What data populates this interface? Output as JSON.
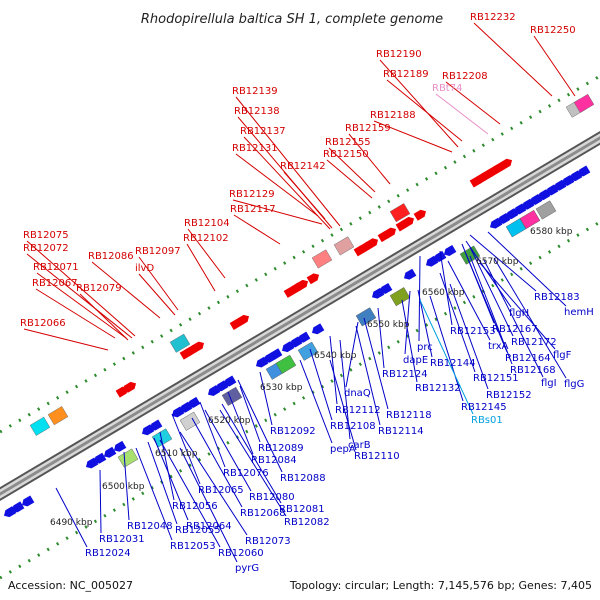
{
  "title": "Rhodopirellula baltica SH 1, complete genome",
  "footer": {
    "accession": "Accession: NC_005027",
    "summary": "Topology: circular; Length: 7,145,576 bp; Genes: 7,405"
  },
  "kbp_ticks": [
    "6490 kbp",
    "6500 kbp",
    "6510 kbp",
    "6520 kbp",
    "6530 kbp",
    "6540 kbp",
    "6550 kbp",
    "6560 kbp",
    "6570 kbp",
    "6580 kbp"
  ],
  "top_labels": [
    {
      "text": "RB12232",
      "color": "#d40000"
    },
    {
      "text": "RB12250",
      "color": "#d40000"
    },
    {
      "text": "RB12190",
      "color": "#d40000"
    },
    {
      "text": "RB12189",
      "color": "#d40000"
    },
    {
      "text": "RB12208",
      "color": "#d40000"
    },
    {
      "text": "RBt74",
      "color": "#e890c8"
    },
    {
      "text": "RB12188",
      "color": "#d40000"
    },
    {
      "text": "RB12139",
      "color": "#d40000"
    },
    {
      "text": "RB12138",
      "color": "#d40000"
    },
    {
      "text": "RB12137",
      "color": "#d40000"
    },
    {
      "text": "RB12159",
      "color": "#d40000"
    },
    {
      "text": "RB12155",
      "color": "#d40000"
    },
    {
      "text": "RB12131",
      "color": "#d40000"
    },
    {
      "text": "RB12150",
      "color": "#d40000"
    },
    {
      "text": "RB12142",
      "color": "#d40000"
    },
    {
      "text": "RB12129",
      "color": "#d40000"
    },
    {
      "text": "RB12117",
      "color": "#d40000"
    },
    {
      "text": "RB12104",
      "color": "#d40000"
    },
    {
      "text": "RB12102",
      "color": "#d40000"
    },
    {
      "text": "RB12075",
      "color": "#d40000"
    },
    {
      "text": "RB12097",
      "color": "#d40000"
    },
    {
      "text": "RB12072",
      "color": "#d40000"
    },
    {
      "text": "RB12086",
      "color": "#d40000"
    },
    {
      "text": "ilvD",
      "color": "#d40000"
    },
    {
      "text": "RB12071",
      "color": "#d40000"
    },
    {
      "text": "RB12067",
      "color": "#d40000"
    },
    {
      "text": "RB12079",
      "color": "#d40000"
    },
    {
      "text": "RB12066",
      "color": "#d40000"
    }
  ],
  "bottom_labels": [
    {
      "text": "RB12183",
      "color": "#0000c8"
    },
    {
      "text": "hemH",
      "color": "#0000c8"
    },
    {
      "text": "flgH",
      "color": "#0000c8"
    },
    {
      "text": "RB12167",
      "color": "#0000c8"
    },
    {
      "text": "RB12172",
      "color": "#0000c8"
    },
    {
      "text": "RB12153",
      "color": "#0000c8"
    },
    {
      "text": "trxA",
      "color": "#0000c8"
    },
    {
      "text": "flgF",
      "color": "#0000c8"
    },
    {
      "text": "prc",
      "color": "#0000c8"
    },
    {
      "text": "RB12164",
      "color": "#0000c8"
    },
    {
      "text": "RB12168",
      "color": "#0000c8"
    },
    {
      "text": "dapE",
      "color": "#0000c8"
    },
    {
      "text": "RB12144",
      "color": "#0000c8"
    },
    {
      "text": "RB12151",
      "color": "#0000c8"
    },
    {
      "text": "flgI",
      "color": "#0000c8"
    },
    {
      "text": "flgG",
      "color": "#0000c8"
    },
    {
      "text": "RB12124",
      "color": "#0000c8"
    },
    {
      "text": "RB12132",
      "color": "#0000c8"
    },
    {
      "text": "RB12152",
      "color": "#0000c8"
    },
    {
      "text": "dnaQ",
      "color": "#0000c8"
    },
    {
      "text": "RB12145",
      "color": "#0000c8"
    },
    {
      "text": "RB12112",
      "color": "#0000c8"
    },
    {
      "text": "RB12118",
      "color": "#0000c8"
    },
    {
      "text": "RBs01",
      "color": "#00a0e0"
    },
    {
      "text": "RB12108",
      "color": "#0000c8"
    },
    {
      "text": "RB12114",
      "color": "#0000c8"
    },
    {
      "text": "RB12092",
      "color": "#0000c8"
    },
    {
      "text": "pepA",
      "color": "#0000c8"
    },
    {
      "text": "carB",
      "color": "#0000c8"
    },
    {
      "text": "RB12089",
      "color": "#0000c8"
    },
    {
      "text": "RB12110",
      "color": "#0000c8"
    },
    {
      "text": "RB12084",
      "color": "#0000c8"
    },
    {
      "text": "RB12088",
      "color": "#0000c8"
    },
    {
      "text": "RB12076",
      "color": "#0000c8"
    },
    {
      "text": "RB12065",
      "color": "#0000c8"
    },
    {
      "text": "RB12080",
      "color": "#0000c8"
    },
    {
      "text": "RB12056",
      "color": "#0000c8"
    },
    {
      "text": "RB12068",
      "color": "#0000c8"
    },
    {
      "text": "RB12081",
      "color": "#0000c8"
    },
    {
      "text": "RB12064",
      "color": "#0000c8"
    },
    {
      "text": "RB12082",
      "color": "#0000c8"
    },
    {
      "text": "RB12055",
      "color": "#0000c8"
    },
    {
      "text": "RB12048",
      "color": "#0000c8"
    },
    {
      "text": "RB12073",
      "color": "#0000c8"
    },
    {
      "text": "RB12031",
      "color": "#0000c8"
    },
    {
      "text": "RB12053",
      "color": "#0000c8"
    },
    {
      "text": "RB12060",
      "color": "#0000c8"
    },
    {
      "text": "RB12024",
      "color": "#0000c8"
    },
    {
      "text": "pyrG",
      "color": "#0000c8"
    }
  ],
  "colors": {
    "forward_gene": "#ee0000",
    "reverse_gene": "#1010e0",
    "backbone": "#8c8c8c",
    "tick_green": "#2e8b2e"
  }
}
